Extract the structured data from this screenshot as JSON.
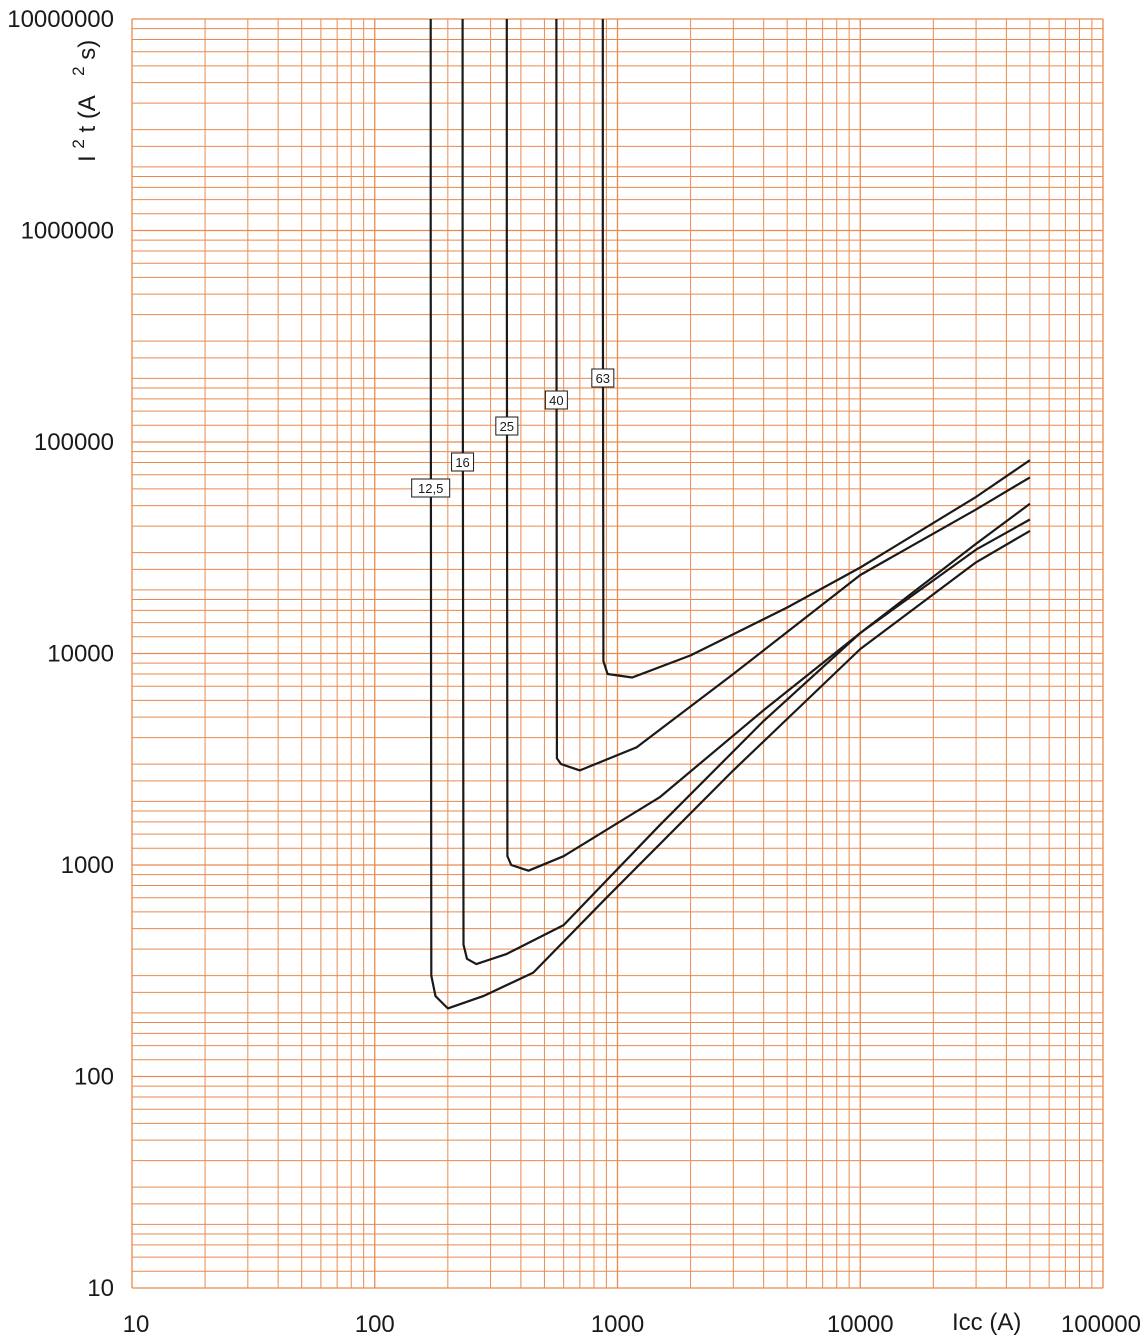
{
  "chart_data": {
    "type": "line",
    "x_scale": "log",
    "y_scale": "log",
    "xlim": [
      10,
      100000
    ],
    "ylim": [
      10,
      10000000
    ],
    "grid": true,
    "grid_color": "#ea8a4f",
    "line_color": "#1a1a1a",
    "xlabel": "Icc (A)",
    "ylabel_parts": {
      "base": "I",
      "sup1": "2",
      "mid": "t (A",
      "sup2": "2",
      "end": "s)"
    },
    "x_tick_labels": [
      "10",
      "100",
      "1000",
      "10000",
      "100000"
    ],
    "y_tick_labels": [
      "10",
      "100",
      "1000",
      "10000",
      "100000",
      "1000000",
      "10000000"
    ],
    "series": [
      {
        "name": "12,5",
        "x": [
          170,
          170,
          171,
          178,
          200,
          280,
          450,
          900,
          3000,
          10000,
          30000,
          50000
        ],
        "y": [
          10000000,
          1000000,
          300,
          240,
          210,
          240,
          310,
          700,
          2800,
          10500,
          27000,
          38000
        ]
      },
      {
        "name": "16",
        "x": [
          230,
          230,
          232,
          240,
          262,
          350,
          600,
          1500,
          4000,
          10000,
          30000,
          50000
        ],
        "y": [
          10000000,
          1000000,
          420,
          360,
          340,
          380,
          520,
          1550,
          4800,
          12500,
          31000,
          43000
        ]
      },
      {
        "name": "25",
        "x": [
          350,
          350,
          352,
          365,
          430,
          600,
          1500,
          4000,
          10000,
          30000,
          50000
        ],
        "y": [
          10000000,
          1000000,
          1100,
          1000,
          940,
          1100,
          2100,
          5400,
          12500,
          33000,
          51000
        ]
      },
      {
        "name": "40",
        "x": [
          560,
          560,
          563,
          585,
          700,
          1200,
          3000,
          10000,
          30000,
          50000
        ],
        "y": [
          10000000,
          1000000,
          3200,
          3000,
          2800,
          3600,
          8000,
          23500,
          48000,
          68000
        ]
      },
      {
        "name": "63",
        "x": [
          870,
          870,
          875,
          910,
          1150,
          2000,
          5000,
          10000,
          30000,
          50000
        ],
        "y": [
          10000000,
          1000000,
          9200,
          8000,
          7700,
          9800,
          16500,
          25500,
          55000,
          82000
        ]
      }
    ]
  }
}
